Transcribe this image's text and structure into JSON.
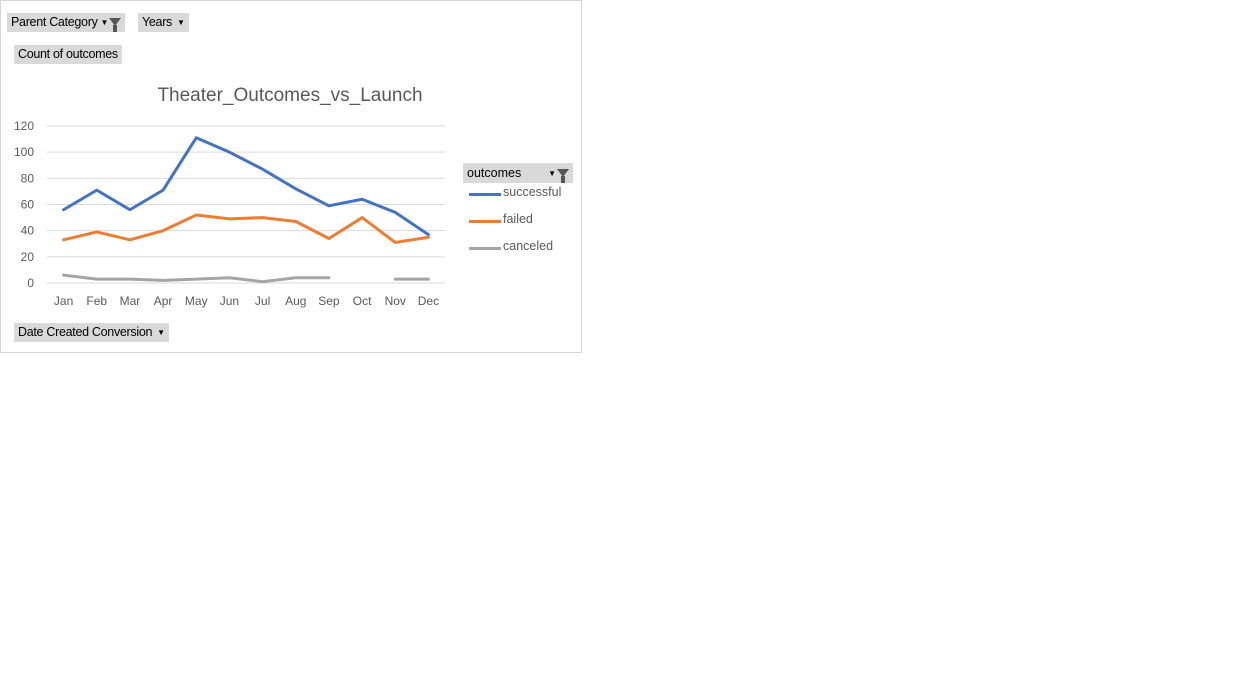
{
  "filters": {
    "parent_category": "Parent Category",
    "years": "Years"
  },
  "values_field": "Count of outcomes",
  "axis_field": "Date Created Conversion",
  "legend_field": "outcomes",
  "colors": {
    "successful": "#4472c4",
    "failed": "#ed7d31",
    "canceled": "#a5a5a5",
    "grid": "#d9d9d9",
    "text": "#595959"
  },
  "chart_data": {
    "type": "line",
    "title": "Theater_Outcomes_vs_Launch",
    "xlabel": "",
    "ylabel": "",
    "categories": [
      "Jan",
      "Feb",
      "Mar",
      "Apr",
      "May",
      "Jun",
      "Jul",
      "Aug",
      "Sep",
      "Oct",
      "Nov",
      "Dec"
    ],
    "ylim": [
      0,
      120
    ],
    "yticks": [
      "0",
      "20",
      "40",
      "60",
      "80",
      "100",
      "120"
    ],
    "grid": true,
    "legend_position": "right",
    "series": [
      {
        "name": "successful",
        "values": [
          56,
          71,
          56,
          71,
          111,
          100,
          87,
          72,
          59,
          64,
          54,
          37
        ]
      },
      {
        "name": "failed",
        "values": [
          33,
          39,
          33,
          40,
          52,
          49,
          50,
          47,
          34,
          50,
          31,
          35
        ]
      },
      {
        "name": "canceled",
        "values": [
          6,
          3,
          3,
          2,
          3,
          4,
          1,
          4,
          4,
          null,
          3,
          3
        ]
      }
    ]
  }
}
